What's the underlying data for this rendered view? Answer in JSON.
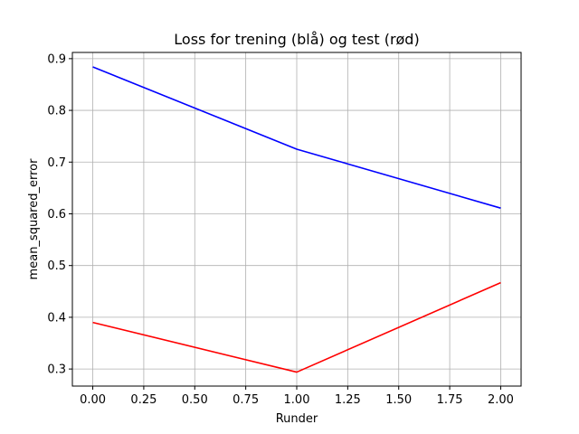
{
  "chart_data": {
    "type": "line",
    "title": "Loss for trening (blå) og test (rød)",
    "xlabel": "Runder",
    "ylabel": "mean_squared_error",
    "xlim": [
      -0.1,
      2.1
    ],
    "ylim": [
      0.267,
      0.912
    ],
    "xticks": [
      0.0,
      0.25,
      0.5,
      0.75,
      1.0,
      1.25,
      1.5,
      1.75,
      2.0
    ],
    "xtick_labels": [
      "0.00",
      "0.25",
      "0.50",
      "0.75",
      "1.00",
      "1.25",
      "1.50",
      "1.75",
      "2.00"
    ],
    "yticks": [
      0.3,
      0.4,
      0.5,
      0.6,
      0.7,
      0.8,
      0.9
    ],
    "ytick_labels": [
      "0.3",
      "0.4",
      "0.5",
      "0.6",
      "0.7",
      "0.8",
      "0.9"
    ],
    "grid": true,
    "legend": false,
    "series": [
      {
        "color": "#0000ff",
        "x": [
          0,
          1,
          2
        ],
        "y": [
          0.884,
          0.725,
          0.611
        ]
      },
      {
        "color": "#ff0000",
        "x": [
          0,
          1,
          2
        ],
        "y": [
          0.39,
          0.294,
          0.467
        ]
      }
    ]
  }
}
